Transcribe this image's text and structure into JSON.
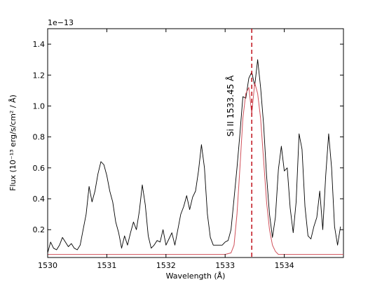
{
  "chart_data": {
    "type": "line",
    "xlabel": "Wavelength (Å)",
    "ylabel": "Flux (10⁻¹³ erg/s/cm² / Å)",
    "offset_text": "1e−13",
    "xlim": [
      1530,
      1535
    ],
    "ylim": [
      0.02,
      1.5
    ],
    "x_ticks": [
      1530,
      1531,
      1532,
      1533,
      1534
    ],
    "y_ticks": [
      0.2,
      0.4,
      0.6,
      0.8,
      1.0,
      1.2,
      1.4
    ],
    "x_tick_labels": [
      "1530",
      "1531",
      "1532",
      "1533",
      "1534"
    ],
    "y_tick_labels": [
      "0.2",
      "0.4",
      "0.6",
      "0.8",
      "1.0",
      "1.2",
      "1.4"
    ],
    "grid": false,
    "annotation": {
      "label": "Si II  1533.45 Å",
      "x": 1533.45,
      "line_color": "#c0101a",
      "line_style": "dashed"
    },
    "series": [
      {
        "style": "observed",
        "color": "#000000",
        "x": [
          1530.0,
          1530.05,
          1530.1,
          1530.15,
          1530.2,
          1530.25,
          1530.3,
          1530.35,
          1530.4,
          1530.45,
          1530.5,
          1530.55,
          1530.6,
          1530.65,
          1530.7,
          1530.75,
          1530.8,
          1530.85,
          1530.9,
          1530.95,
          1531.0,
          1531.05,
          1531.1,
          1531.15,
          1531.2,
          1531.25,
          1531.3,
          1531.35,
          1531.4,
          1531.45,
          1531.5,
          1531.55,
          1531.6,
          1531.65,
          1531.7,
          1531.75,
          1531.8,
          1531.85,
          1531.9,
          1531.95,
          1532.0,
          1532.05,
          1532.1,
          1532.15,
          1532.2,
          1532.25,
          1532.3,
          1532.35,
          1532.4,
          1532.45,
          1532.5,
          1532.55,
          1532.6,
          1532.65,
          1532.7,
          1532.75,
          1532.8,
          1532.85,
          1532.9,
          1532.95,
          1533.0,
          1533.05,
          1533.1,
          1533.15,
          1533.2,
          1533.25,
          1533.3,
          1533.35,
          1533.4,
          1533.45,
          1533.5,
          1533.55,
          1533.6,
          1533.65,
          1533.7,
          1533.75,
          1533.8,
          1533.85,
          1533.9,
          1533.95,
          1534.0,
          1534.05,
          1534.1,
          1534.15,
          1534.2,
          1534.25,
          1534.3,
          1534.35,
          1534.4,
          1534.45,
          1534.5,
          1534.55,
          1534.6,
          1534.65,
          1534.7,
          1534.75,
          1534.8,
          1534.85,
          1534.9,
          1534.95
        ],
        "y": [
          0.05,
          0.12,
          0.08,
          0.07,
          0.1,
          0.15,
          0.12,
          0.09,
          0.11,
          0.08,
          0.07,
          0.1,
          0.2,
          0.3,
          0.48,
          0.38,
          0.45,
          0.56,
          0.64,
          0.62,
          0.55,
          0.45,
          0.38,
          0.25,
          0.18,
          0.08,
          0.16,
          0.1,
          0.18,
          0.25,
          0.2,
          0.32,
          0.49,
          0.36,
          0.16,
          0.08,
          0.1,
          0.13,
          0.12,
          0.2,
          0.1,
          0.14,
          0.18,
          0.1,
          0.2,
          0.3,
          0.35,
          0.42,
          0.33,
          0.41,
          0.45,
          0.58,
          0.75,
          0.6,
          0.3,
          0.15,
          0.1,
          0.1,
          0.1,
          0.1,
          0.12,
          0.13,
          0.2,
          0.4,
          0.6,
          0.82,
          1.06,
          1.05,
          1.18,
          1.22,
          1.13,
          1.3,
          1.12,
          0.88,
          0.55,
          0.3,
          0.15,
          0.28,
          0.59,
          0.74,
          0.58,
          0.6,
          0.34,
          0.18,
          0.38,
          0.82,
          0.72,
          0.35,
          0.16,
          0.14,
          0.22,
          0.28,
          0.45,
          0.2,
          0.55,
          0.82,
          0.6,
          0.22,
          0.1,
          0.22
        ]
      },
      {
        "style": "model",
        "color": "#d0505a",
        "x": [
          1530.0,
          1530.5,
          1531.0,
          1531.5,
          1532.0,
          1532.5,
          1533.0,
          1533.1,
          1533.15,
          1533.2,
          1533.25,
          1533.3,
          1533.35,
          1533.4,
          1533.45,
          1533.5,
          1533.55,
          1533.6,
          1533.65,
          1533.7,
          1533.75,
          1533.8,
          1533.85,
          1533.9,
          1534.0,
          1534.5,
          1535.0
        ],
        "y": [
          0.04,
          0.04,
          0.04,
          0.04,
          0.04,
          0.04,
          0.04,
          0.05,
          0.1,
          0.3,
          0.6,
          0.92,
          1.08,
          1.12,
          0.95,
          1.15,
          1.08,
          0.92,
          0.65,
          0.38,
          0.2,
          0.1,
          0.06,
          0.04,
          0.04,
          0.04,
          0.04
        ]
      }
    ]
  }
}
